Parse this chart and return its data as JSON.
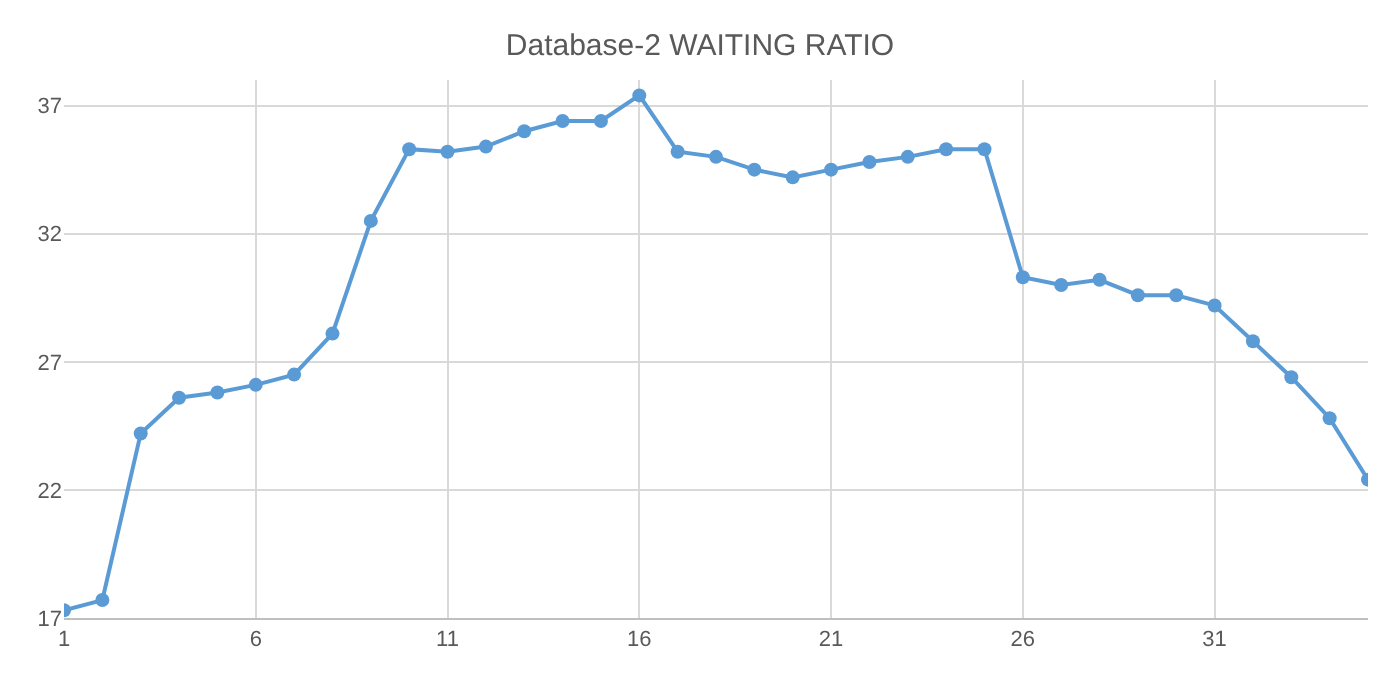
{
  "chart_data": {
    "type": "line",
    "title": "Database-2 WAITING RATIO",
    "x": [
      1,
      2,
      3,
      4,
      5,
      6,
      7,
      8,
      9,
      10,
      11,
      12,
      13,
      14,
      15,
      16,
      17,
      18,
      19,
      20,
      21,
      22,
      23,
      24,
      25,
      26,
      27,
      28,
      29,
      30,
      31,
      32,
      33,
      34,
      35
    ],
    "series": [
      {
        "color": "#5b9bd5",
        "values": [
          17.3,
          17.7,
          24.2,
          25.6,
          25.8,
          26.1,
          26.5,
          28.1,
          32.5,
          35.3,
          35.2,
          35.4,
          36.0,
          36.4,
          36.4,
          37.4,
          35.2,
          35.0,
          34.5,
          34.2,
          34.5,
          34.8,
          35.0,
          35.3,
          35.3,
          30.3,
          30.0,
          30.2,
          29.6,
          29.6,
          29.2,
          27.8,
          26.4,
          24.8,
          22.4
        ]
      }
    ],
    "xlim": [
      1,
      35
    ],
    "xticks": [
      1,
      6,
      11,
      16,
      21,
      26,
      31
    ],
    "ylim": [
      17,
      38
    ],
    "yticks": [
      17,
      22,
      27,
      32,
      37
    ],
    "grid": true,
    "marker": "circle",
    "line_style": "solid",
    "legend": false
  }
}
